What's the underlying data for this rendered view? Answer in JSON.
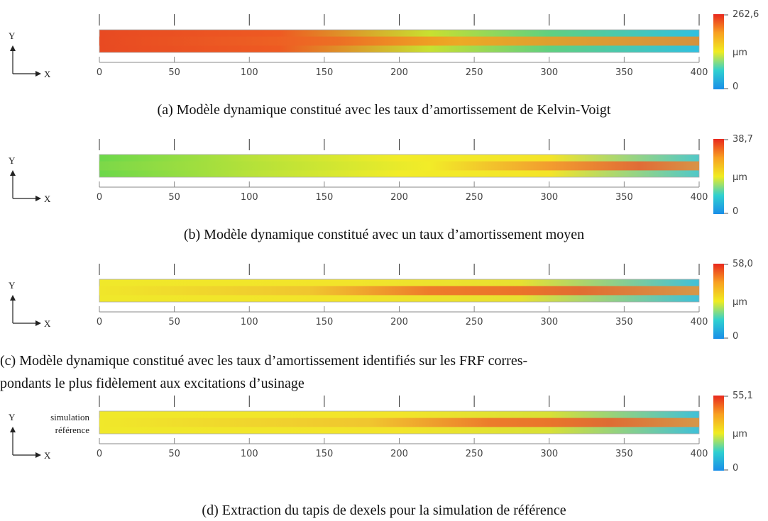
{
  "panels": [
    {
      "axis_y": "Y",
      "axis_x": "X",
      "xticks": [
        "0",
        "50",
        "100",
        "150",
        "200",
        "250",
        "300",
        "350",
        "400"
      ],
      "colorbar": {
        "max": "262,6",
        "unit": "µm",
        "min": "0"
      },
      "caption": [
        "(a) Modèle dynamique constitué avec les taux d’amortissement de Kelvin-Voigt"
      ]
    },
    {
      "axis_y": "Y",
      "axis_x": "X",
      "xticks": [
        "0",
        "50",
        "100",
        "150",
        "200",
        "250",
        "300",
        "350",
        "400"
      ],
      "colorbar": {
        "max": "38,7",
        "unit": "µm",
        "min": "0"
      },
      "caption": [
        "(b) Modèle dynamique constitué avec un taux d’amortissement moyen"
      ]
    },
    {
      "axis_y": "Y",
      "axis_x": "X",
      "xticks": [
        "0",
        "50",
        "100",
        "150",
        "200",
        "250",
        "300",
        "350",
        "400"
      ],
      "colorbar": {
        "max": "58,0",
        "unit": "µm",
        "min": "0"
      },
      "caption": [
        "(c) Modèle dynamique constitué avec les taux d’amortissement identifiés sur les FRF corres-",
        "pondants le plus fidèlement aux excitations d’usinage"
      ]
    },
    {
      "axis_y": "Y",
      "axis_x": "X",
      "xticks": [
        "0",
        "50",
        "100",
        "150",
        "200",
        "250",
        "300",
        "350",
        "400"
      ],
      "colorbar": {
        "max": "55,1",
        "unit": "µm",
        "min": "0"
      },
      "strip_label": [
        "simulation",
        "référence"
      ],
      "caption": [
        "(d) Extraction du tapis de dexels pour la simulation de référence"
      ]
    }
  ]
}
